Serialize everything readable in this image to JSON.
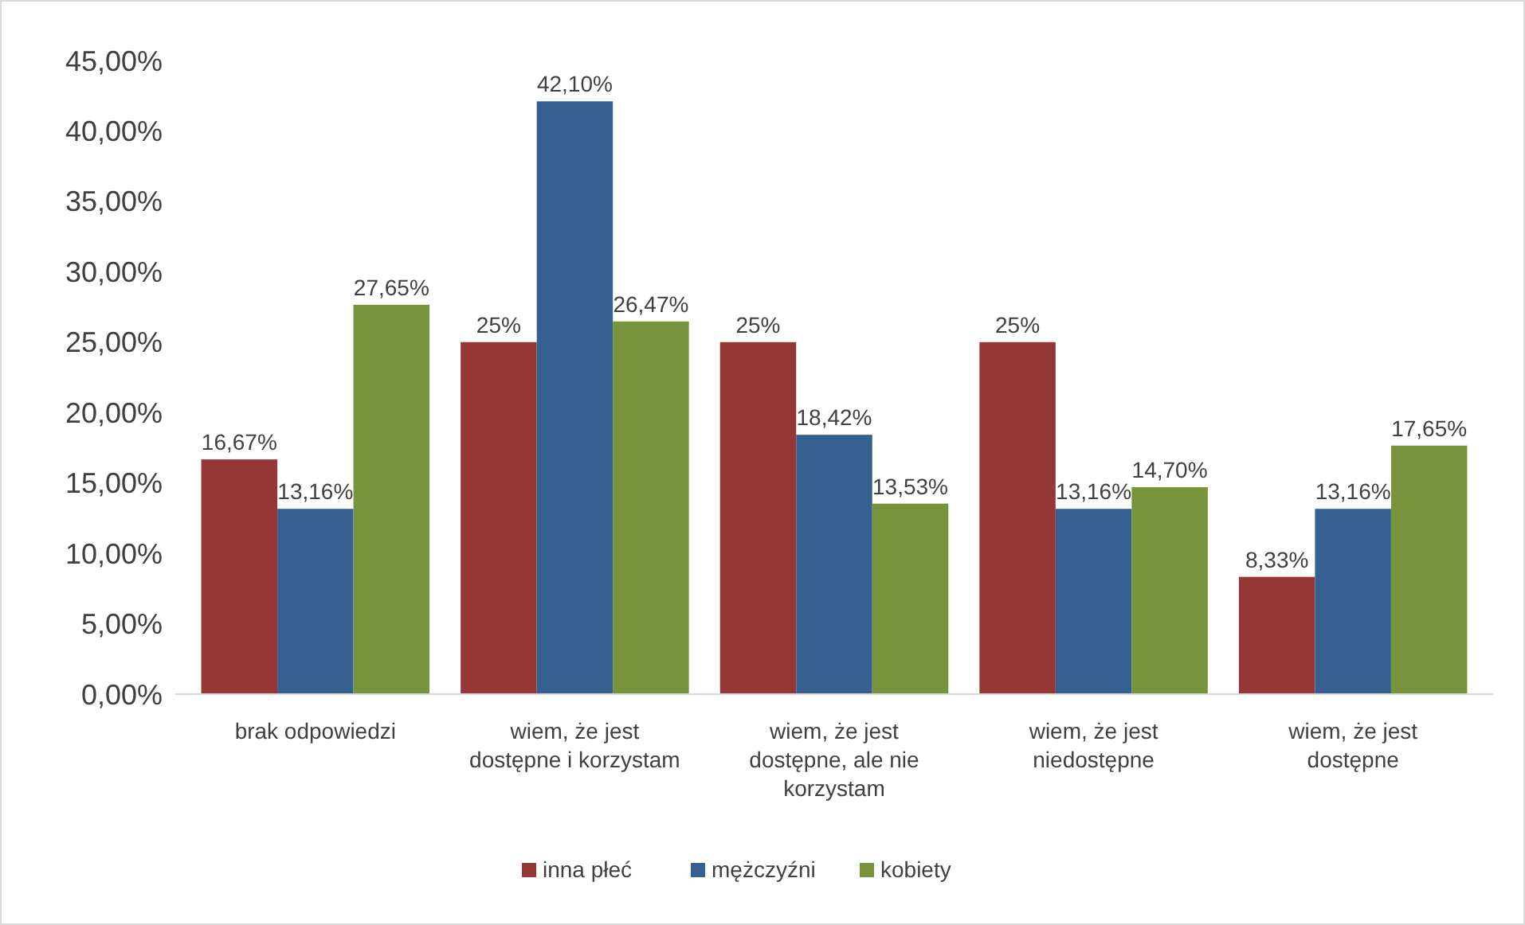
{
  "chart_data": {
    "type": "bar",
    "categories": [
      "brak odpowiedzi",
      "wiem, że jest dostępne i korzystam",
      "wiem, że jest dostępne, ale nie korzystam",
      "wiem, że jest niedostępne",
      "wiem, że jest dostępne"
    ],
    "series": [
      {
        "name": "inna płeć",
        "color": "#953735",
        "values": [
          16.67,
          25,
          25,
          25,
          8.33
        ],
        "value_labels": [
          "16,67%",
          "25%",
          "25%",
          "25%",
          "8,33%"
        ]
      },
      {
        "name": "mężczyźni",
        "color": "#376092",
        "values": [
          13.16,
          42.1,
          18.42,
          13.16,
          13.16
        ],
        "value_labels": [
          "13,16%",
          "42,10%",
          "18,42%",
          "13,16%",
          "13,16%"
        ]
      },
      {
        "name": "kobiety",
        "color": "#77933c",
        "values": [
          27.65,
          26.47,
          13.53,
          14.7,
          17.65
        ],
        "value_labels": [
          "27,65%",
          "26,47%",
          "13,53%",
          "14,70%",
          "17,65%"
        ]
      }
    ],
    "ylim": [
      0,
      45
    ],
    "yticks": [
      {
        "value": 0,
        "label": "0,00%"
      },
      {
        "value": 5,
        "label": "5,00%"
      },
      {
        "value": 10,
        "label": "10,00%"
      },
      {
        "value": 15,
        "label": "15,00%"
      },
      {
        "value": 20,
        "label": "20,00%"
      },
      {
        "value": 25,
        "label": "25,00%"
      },
      {
        "value": 30,
        "label": "30,00%"
      },
      {
        "value": 35,
        "label": "35,00%"
      },
      {
        "value": 40,
        "label": "40,00%"
      },
      {
        "value": 45,
        "label": "45,00%"
      }
    ],
    "grid": false,
    "legend": "bottom"
  }
}
